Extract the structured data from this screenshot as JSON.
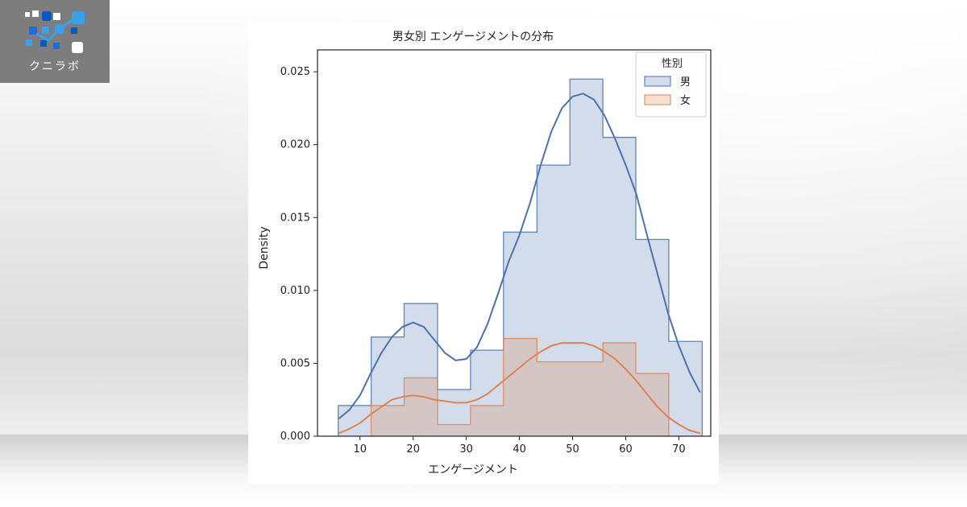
{
  "brand": {
    "name": "クニラボ"
  },
  "chart_data": {
    "type": "histogram",
    "title": "男女別 エンゲージメントの分布",
    "xlabel": "エンゲージメント",
    "ylabel": "Density",
    "xlim": [
      2,
      76
    ],
    "ylim": [
      0,
      0.0265
    ],
    "xticks": [
      10,
      20,
      30,
      40,
      50,
      60,
      70
    ],
    "yticks": [
      "0.000",
      "0.005",
      "0.010",
      "0.015",
      "0.020",
      "0.025"
    ],
    "ytick_values": [
      0,
      0.005,
      0.01,
      0.015,
      0.02,
      0.025
    ],
    "bin_edges": [
      5.9,
      12.1,
      18.3,
      24.6,
      30.8,
      37.0,
      43.3,
      49.5,
      55.7,
      61.9,
      68.1,
      74.4
    ],
    "legend": {
      "title": "性別",
      "position": "top-right"
    },
    "series": [
      {
        "name": "男",
        "color": "#4c72b0",
        "fill": "rgba(76,114,176,0.25)",
        "density": [
          0.0021,
          0.0068,
          0.0091,
          0.0032,
          0.0059,
          0.014,
          0.0186,
          0.0245,
          0.0205,
          0.0135,
          0.0065
        ],
        "kde": [
          [
            6,
            0.0012
          ],
          [
            8,
            0.0018
          ],
          [
            10,
            0.0028
          ],
          [
            12,
            0.0043
          ],
          [
            14,
            0.0057
          ],
          [
            16,
            0.0068
          ],
          [
            18,
            0.0075
          ],
          [
            20,
            0.0078
          ],
          [
            22,
            0.0075
          ],
          [
            24,
            0.0066
          ],
          [
            26,
            0.0057
          ],
          [
            28,
            0.0052
          ],
          [
            30,
            0.0053
          ],
          [
            32,
            0.0061
          ],
          [
            34,
            0.0077
          ],
          [
            36,
            0.0098
          ],
          [
            38,
            0.012
          ],
          [
            40,
            0.0138
          ],
          [
            42,
            0.016
          ],
          [
            44,
            0.0186
          ],
          [
            46,
            0.0209
          ],
          [
            48,
            0.0225
          ],
          [
            50,
            0.0233
          ],
          [
            52,
            0.0235
          ],
          [
            54,
            0.0231
          ],
          [
            56,
            0.022
          ],
          [
            58,
            0.0204
          ],
          [
            60,
            0.0186
          ],
          [
            62,
            0.0166
          ],
          [
            64,
            0.0138
          ],
          [
            66,
            0.0111
          ],
          [
            68,
            0.0084
          ],
          [
            70,
            0.0062
          ],
          [
            72,
            0.0044
          ],
          [
            74,
            0.003
          ]
        ]
      },
      {
        "name": "女",
        "color": "#dd8452",
        "fill": "rgba(221,132,82,0.25)",
        "density": [
          0,
          0.0021,
          0.004,
          0.0008,
          0.0021,
          0.0067,
          0.0051,
          0.0051,
          0.0064,
          0.0043,
          0
        ],
        "kde": [
          [
            6,
            0.0002
          ],
          [
            8,
            0.0005
          ],
          [
            10,
            0.0009
          ],
          [
            12,
            0.0015
          ],
          [
            14,
            0.002
          ],
          [
            16,
            0.0025
          ],
          [
            18,
            0.0027
          ],
          [
            20,
            0.0028
          ],
          [
            22,
            0.0027
          ],
          [
            24,
            0.0025
          ],
          [
            26,
            0.0024
          ],
          [
            28,
            0.0023
          ],
          [
            30,
            0.0023
          ],
          [
            32,
            0.0025
          ],
          [
            34,
            0.0029
          ],
          [
            36,
            0.0035
          ],
          [
            38,
            0.0041
          ],
          [
            40,
            0.0047
          ],
          [
            42,
            0.0053
          ],
          [
            44,
            0.0058
          ],
          [
            46,
            0.0062
          ],
          [
            48,
            0.0064
          ],
          [
            50,
            0.0064
          ],
          [
            52,
            0.0064
          ],
          [
            54,
            0.0062
          ],
          [
            56,
            0.0058
          ],
          [
            58,
            0.0053
          ],
          [
            60,
            0.0046
          ],
          [
            62,
            0.0038
          ],
          [
            64,
            0.0029
          ],
          [
            66,
            0.002
          ],
          [
            68,
            0.0013
          ],
          [
            70,
            0.0008
          ],
          [
            72,
            0.0004
          ],
          [
            74,
            0.0002
          ]
        ]
      }
    ]
  }
}
